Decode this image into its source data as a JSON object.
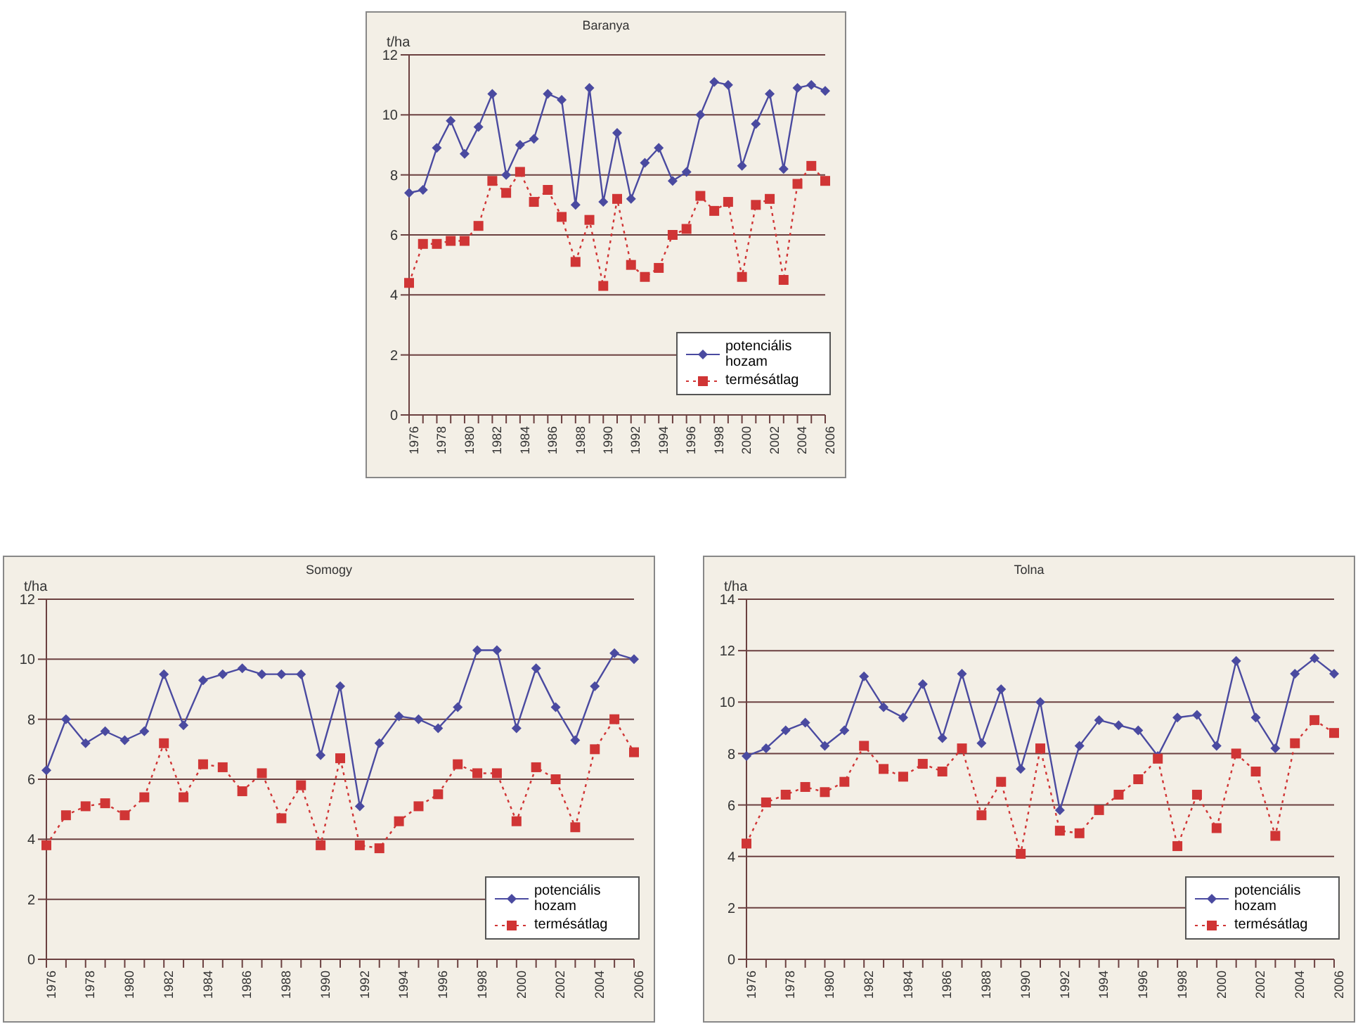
{
  "chart_data": [
    {
      "type": "line",
      "title": "Baranya",
      "ylabel": "t/ha",
      "categories": [
        "1976",
        null,
        "1978",
        null,
        "1980",
        null,
        "1982",
        null,
        "1984",
        null,
        "1986",
        null,
        "1988",
        null,
        "1990",
        null,
        "1992",
        null,
        "1994",
        null,
        "1996",
        null,
        "1998",
        null,
        "2000",
        null,
        "2002",
        null,
        "2004",
        null,
        "2006"
      ],
      "ylim": [
        0,
        12
      ],
      "yticks": [
        0,
        2,
        4,
        6,
        8,
        10,
        12
      ],
      "grid": "y",
      "legend": "bottom right",
      "series": [
        {
          "name": "potenciális hozam",
          "color": "#4a4aa0",
          "marker": "diamond",
          "line_style": "solid",
          "values": [
            7.4,
            7.5,
            8.9,
            9.8,
            8.7,
            9.6,
            10.7,
            8.0,
            9.0,
            9.2,
            10.7,
            10.5,
            7.0,
            10.9,
            7.1,
            9.4,
            7.2,
            8.4,
            8.9,
            7.8,
            8.1,
            10.0,
            11.1,
            11.0,
            8.3,
            9.7,
            10.7,
            8.2,
            10.9,
            11.0,
            10.8
          ]
        },
        {
          "name": "termésátlag",
          "color": "#d03535",
          "marker": "square",
          "line_style": "dotted",
          "values": [
            4.4,
            5.7,
            5.7,
            5.8,
            5.8,
            6.3,
            7.8,
            7.4,
            8.1,
            7.1,
            7.5,
            6.6,
            5.1,
            6.5,
            4.3,
            7.2,
            5.0,
            4.6,
            4.9,
            6.0,
            6.2,
            7.3,
            6.8,
            7.1,
            4.6,
            7.0,
            7.2,
            4.5,
            7.7,
            8.3,
            7.8
          ]
        }
      ]
    },
    {
      "type": "line",
      "title": "Somogy",
      "ylabel": "t/ha",
      "categories": [
        "1976",
        null,
        "1978",
        null,
        "1980",
        null,
        "1982",
        null,
        "1984",
        null,
        "1986",
        null,
        "1988",
        null,
        "1990",
        null,
        "1992",
        null,
        "1994",
        null,
        "1996",
        null,
        "1998",
        null,
        "2000",
        null,
        "2002",
        null,
        "2004",
        null,
        "2006"
      ],
      "ylim": [
        0,
        12
      ],
      "yticks": [
        0,
        2,
        4,
        6,
        8,
        10,
        12
      ],
      "grid": "y",
      "legend": "bottom right",
      "series": [
        {
          "name": "potenciális hozam",
          "color": "#4a4aa0",
          "marker": "diamond",
          "line_style": "solid",
          "values": [
            6.3,
            8.0,
            7.2,
            7.6,
            7.3,
            7.6,
            9.5,
            7.8,
            9.3,
            9.5,
            9.7,
            9.5,
            9.5,
            9.5,
            6.8,
            9.1,
            5.1,
            7.2,
            8.1,
            8.0,
            7.7,
            8.4,
            10.3,
            10.3,
            7.7,
            9.7,
            8.4,
            7.3,
            9.1,
            10.2,
            10.0
          ]
        },
        {
          "name": "termésátlag",
          "color": "#d03535",
          "marker": "square",
          "line_style": "dotted",
          "values": [
            3.8,
            4.8,
            5.1,
            5.2,
            4.8,
            5.4,
            7.2,
            5.4,
            6.5,
            6.4,
            5.6,
            6.2,
            4.7,
            5.8,
            3.8,
            6.7,
            3.8,
            3.7,
            4.6,
            5.1,
            5.5,
            6.5,
            6.2,
            6.2,
            4.6,
            6.4,
            6.0,
            4.4,
            7.0,
            8.0,
            6.9
          ]
        }
      ]
    },
    {
      "type": "line",
      "title": "Tolna",
      "ylabel": "t/ha",
      "categories": [
        "1976",
        null,
        "1978",
        null,
        "1980",
        null,
        "1982",
        null,
        "1984",
        null,
        "1986",
        null,
        "1988",
        null,
        "1990",
        null,
        "1992",
        null,
        "1994",
        null,
        "1996",
        null,
        "1998",
        null,
        "2000",
        null,
        "2002",
        null,
        "2004",
        null,
        "2006"
      ],
      "ylim": [
        0,
        14
      ],
      "yticks": [
        0,
        2,
        4,
        6,
        8,
        10,
        12,
        14
      ],
      "grid": "y",
      "legend": "bottom right",
      "series": [
        {
          "name": "potenciális hozam",
          "color": "#4a4aa0",
          "marker": "diamond",
          "line_style": "solid",
          "values": [
            7.9,
            8.2,
            8.9,
            9.2,
            8.3,
            8.9,
            11.0,
            9.8,
            9.4,
            10.7,
            8.6,
            11.1,
            8.4,
            10.5,
            7.4,
            10.0,
            5.8,
            8.3,
            9.3,
            9.1,
            8.9,
            7.9,
            9.4,
            9.5,
            8.3,
            11.6,
            9.4,
            8.2,
            11.1,
            11.7,
            11.1
          ]
        },
        {
          "name": "termésátlag",
          "color": "#d03535",
          "marker": "square",
          "line_style": "dotted",
          "values": [
            4.5,
            6.1,
            6.4,
            6.7,
            6.5,
            6.9,
            8.3,
            7.4,
            7.1,
            7.6,
            7.3,
            8.2,
            5.6,
            6.9,
            4.1,
            8.2,
            5.0,
            4.9,
            5.8,
            6.4,
            7.0,
            7.8,
            4.4,
            6.4,
            5.1,
            8.0,
            7.3,
            4.8,
            8.4,
            9.3,
            8.8
          ]
        }
      ]
    }
  ]
}
